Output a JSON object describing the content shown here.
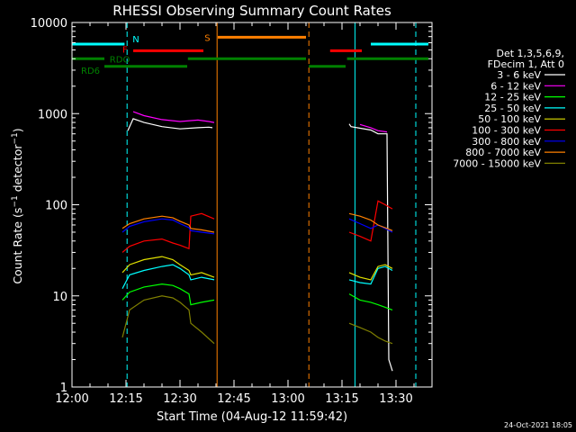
{
  "chart_data": {
    "type": "line",
    "title": "RHESSI Observing Summary Count Rates",
    "xlabel": "Start Time (04-Aug-12 11:59:42)",
    "ylabel": "Count Rate (s^-1 detector^-1)",
    "ylabel_parts": {
      "main": "Count Rate (s",
      "exp1": "−1",
      "mid": " detector",
      "exp2": "−1",
      "end": ")"
    },
    "xlim": [
      0,
      100
    ],
    "ylim": [
      1,
      10000
    ],
    "yscale": "log",
    "x_ticks": [
      {
        "label": "12:00",
        "t": 0
      },
      {
        "label": "12:15",
        "t": 15
      },
      {
        "label": "12:30",
        "t": 30
      },
      {
        "label": "12:45",
        "t": 45
      },
      {
        "label": "13:00",
        "t": 60
      },
      {
        "label": "13:15",
        "t": 75
      },
      {
        "label": "13:30",
        "t": 90
      }
    ],
    "y_ticks": [
      {
        "label": "1",
        "v": 1
      },
      {
        "label": "10",
        "v": 10
      },
      {
        "label": "100",
        "v": 100
      },
      {
        "label": "1000",
        "v": 1000
      },
      {
        "label": "10000",
        "v": 10000
      }
    ],
    "legend": {
      "header": [
        "Det 1,3,5,6,9,",
        "FDecim 1, Att 0"
      ],
      "placement": "right"
    },
    "series": [
      {
        "name": "3 - 6 keV",
        "color": "#ffffff",
        "x": [
          13.5,
          15.5,
          17,
          20,
          25,
          30,
          35,
          38,
          39,
          43.5,
          77,
          77.5,
          83,
          85,
          87.5,
          88,
          89
        ],
        "y": [
          null,
          650,
          880,
          800,
          720,
          680,
          700,
          710,
          700,
          null,
          770,
          720,
          660,
          600,
          600,
          2,
          1.5
        ]
      },
      {
        "name": "6 - 12 keV",
        "color": "#ff00ff",
        "x": [
          15.5,
          17,
          20,
          25,
          30,
          35,
          38,
          39.5,
          77,
          80,
          83,
          85,
          87.5
        ],
        "y": [
          null,
          1050,
          950,
          860,
          820,
          850,
          820,
          800,
          null,
          760,
          700,
          650,
          630
        ]
      },
      {
        "name": "12 - 25 keV",
        "color": "#00ff00",
        "x": [
          14,
          16,
          20,
          25,
          28,
          30,
          32.5,
          33,
          36,
          39.5,
          77,
          80,
          83,
          85,
          87,
          89
        ],
        "y": [
          9,
          11,
          12.5,
          13.5,
          13,
          12,
          10.5,
          8,
          8.5,
          9,
          10.5,
          9,
          8.5,
          8,
          7.5,
          7
        ]
      },
      {
        "name": "25 - 50 keV",
        "color": "#00ffff",
        "x": [
          14,
          16,
          20,
          25,
          28,
          30,
          32.5,
          33,
          36,
          39.5,
          77,
          80,
          83,
          85,
          87,
          89
        ],
        "y": [
          12,
          17,
          19,
          21,
          22,
          20,
          17,
          15,
          16,
          15,
          15,
          14,
          13.5,
          20,
          21,
          19
        ]
      },
      {
        "name": "50 - 100 keV",
        "color": "#e0e000",
        "x": [
          14,
          16,
          20,
          25,
          28,
          30,
          32.5,
          33,
          36,
          39.5,
          77,
          80,
          83,
          85,
          87,
          89
        ],
        "y": [
          18,
          22,
          25,
          27,
          25,
          22,
          19,
          17,
          18,
          16,
          18,
          16,
          15,
          21,
          22,
          20
        ]
      },
      {
        "name": "100 - 300 keV",
        "color": "#ff0000",
        "x": [
          14,
          16,
          20,
          25,
          28,
          30,
          32.5,
          33,
          36,
          39.5,
          77,
          80,
          83,
          85,
          87,
          89
        ],
        "y": [
          30,
          35,
          40,
          42,
          38,
          36,
          33,
          75,
          80,
          70,
          50,
          45,
          40,
          110,
          100,
          90
        ]
      },
      {
        "name": "300 - 800 keV",
        "color": "#0000ff",
        "x": [
          14,
          16,
          20,
          25,
          28,
          30,
          32.5,
          33,
          36,
          39.5,
          77,
          80,
          83,
          85,
          87,
          89
        ],
        "y": [
          50,
          58,
          65,
          70,
          68,
          62,
          56,
          52,
          50,
          48,
          70,
          62,
          55,
          60,
          55,
          50
        ]
      },
      {
        "name": "800 - 7000 keV",
        "color": "#ff8000",
        "x": [
          14,
          16,
          20,
          25,
          28,
          30,
          32.5,
          33,
          36,
          39.5,
          77,
          80,
          83,
          85,
          87,
          89
        ],
        "y": [
          55,
          62,
          70,
          75,
          72,
          66,
          60,
          55,
          53,
          50,
          80,
          75,
          68,
          60,
          56,
          52
        ]
      },
      {
        "name": "7000 - 15000 keV",
        "color": "#808000",
        "x": [
          14,
          16,
          20,
          25,
          28,
          30,
          32.5,
          33,
          36,
          39.5,
          77,
          80,
          83,
          85,
          87,
          89
        ],
        "y": [
          3.5,
          7,
          9,
          10,
          9.5,
          8.5,
          7,
          5,
          4,
          3,
          5,
          4.5,
          4,
          3.5,
          3.2,
          3
        ]
      }
    ],
    "flags": [
      {
        "label": "N",
        "color": "#00ffff",
        "segments": [
          [
            0,
            14.6
          ],
          [
            83,
            99
          ]
        ],
        "level": 5800
      },
      {
        "label": "F",
        "color": "#ff0000",
        "segments": [
          [
            17,
            36.5
          ],
          [
            71.7,
            80.5
          ]
        ],
        "level": 4900
      },
      {
        "label": "S",
        "color": "#ff8000",
        "segments": [
          [
            40.5,
            65
          ]
        ],
        "level": 6900
      },
      {
        "label": "RDO",
        "color": "#008000",
        "segments": [
          [
            0,
            9
          ],
          [
            32.2,
            65
          ],
          [
            76.4,
            99
          ]
        ],
        "level": 4000
      },
      {
        "label": "RD6",
        "color": "#008000",
        "segments": [
          [
            9,
            32
          ],
          [
            65.8,
            76
          ]
        ],
        "level": 3300
      }
    ],
    "vlines": [
      {
        "t": 0,
        "color": "#00ffff",
        "style": "solid"
      },
      {
        "t": 15.3,
        "color": "#00ffff",
        "style": "dashed"
      },
      {
        "t": 40.3,
        "color": "#ff8000",
        "style": "solid"
      },
      {
        "t": 65.8,
        "color": "#ff8000",
        "style": "dashed"
      },
      {
        "t": 78.6,
        "color": "#00ffff",
        "style": "solid"
      },
      {
        "t": 95.5,
        "color": "#00ffff",
        "style": "dashed"
      }
    ]
  },
  "footer": {
    "timestamp": "24-Oct-2021 18:05"
  }
}
